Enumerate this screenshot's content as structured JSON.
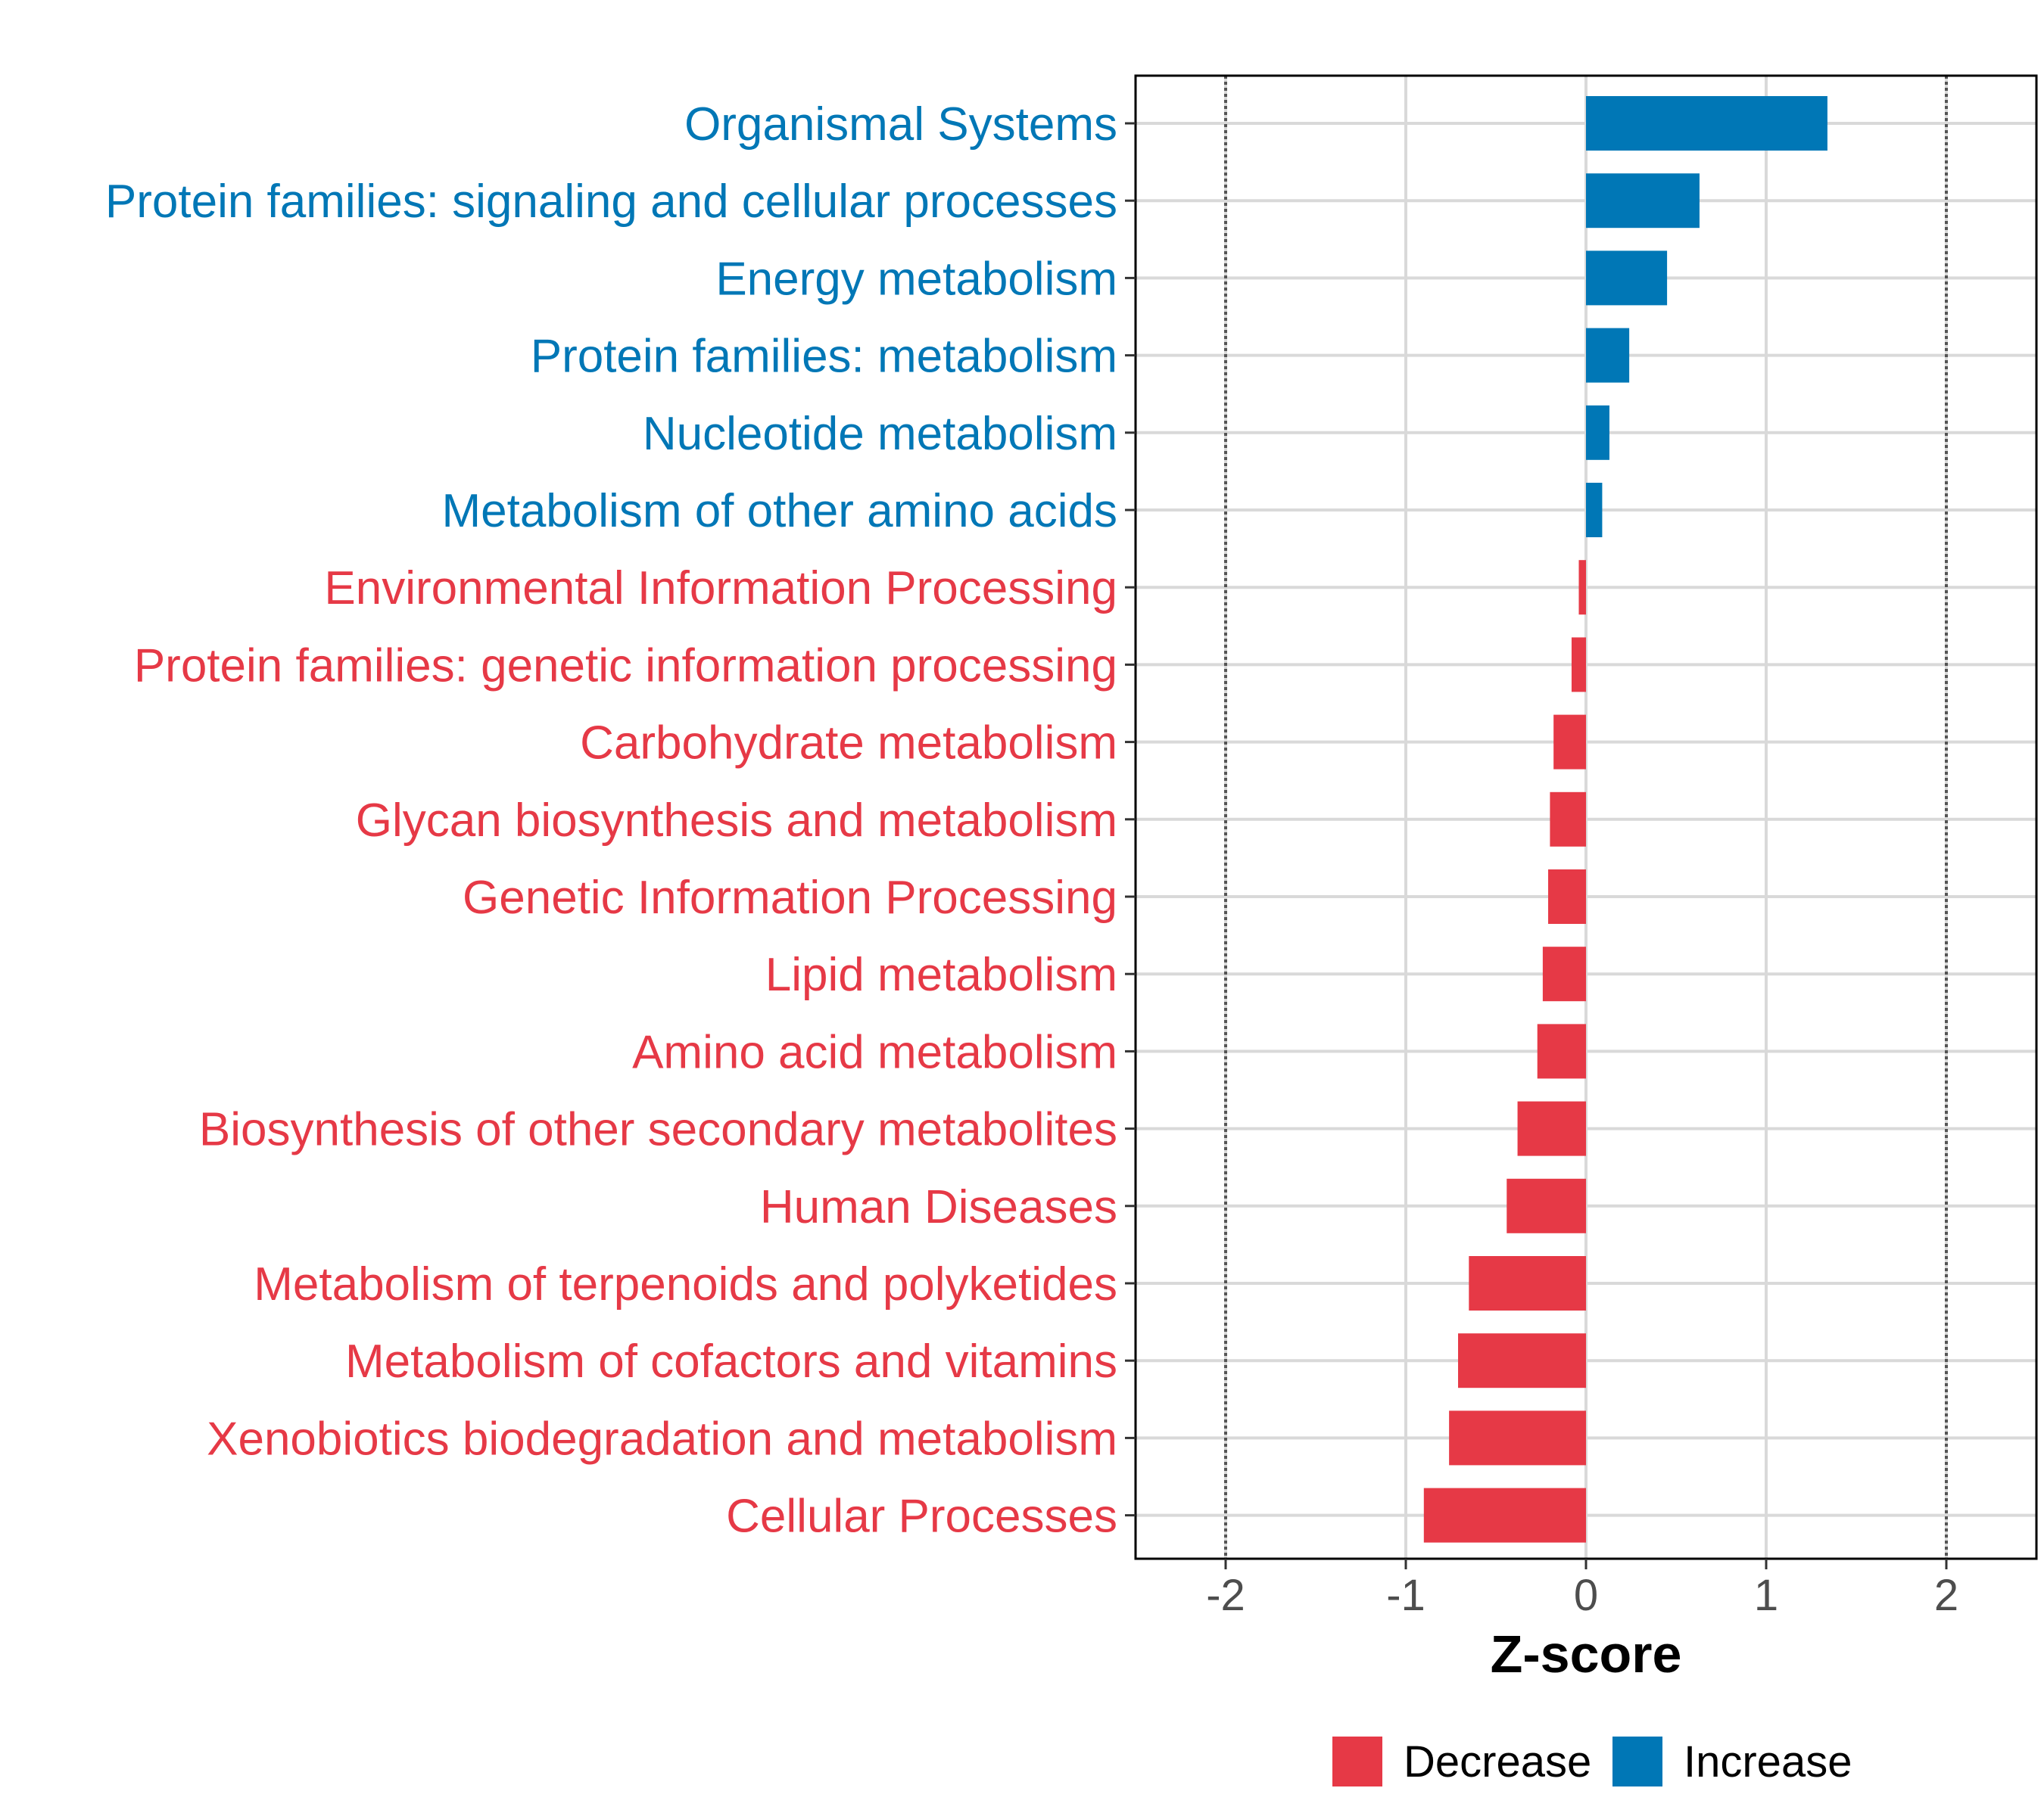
{
  "chart_data": {
    "type": "bar",
    "orientation": "horizontal",
    "xlabel": "Z-score",
    "xlim": [
      -2.5,
      2.5
    ],
    "xticks": [
      -2,
      -1,
      0,
      1,
      2
    ],
    "reference_lines": [
      -2,
      2
    ],
    "colors": {
      "Decrease": "#e63946",
      "Increase": "#0077b6"
    },
    "legend": {
      "position": "bottom",
      "entries": [
        "Decrease",
        "Increase"
      ]
    },
    "categories": [
      {
        "label": "Organismal Systems",
        "value": 1.34,
        "group": "Increase"
      },
      {
        "label": "Protein families: signaling and cellular processes",
        "value": 0.63,
        "group": "Increase"
      },
      {
        "label": "Energy metabolism",
        "value": 0.45,
        "group": "Increase"
      },
      {
        "label": "Protein families: metabolism",
        "value": 0.24,
        "group": "Increase"
      },
      {
        "label": "Nucleotide metabolism",
        "value": 0.13,
        "group": "Increase"
      },
      {
        "label": "Metabolism of other amino acids",
        "value": 0.09,
        "group": "Increase"
      },
      {
        "label": "Environmental Information Processing",
        "value": -0.04,
        "group": "Decrease"
      },
      {
        "label": "Protein families: genetic information processing",
        "value": -0.08,
        "group": "Decrease"
      },
      {
        "label": "Carbohydrate metabolism",
        "value": -0.18,
        "group": "Decrease"
      },
      {
        "label": "Glycan biosynthesis and metabolism",
        "value": -0.2,
        "group": "Decrease"
      },
      {
        "label": "Genetic Information Processing",
        "value": -0.21,
        "group": "Decrease"
      },
      {
        "label": "Lipid metabolism",
        "value": -0.24,
        "group": "Decrease"
      },
      {
        "label": "Amino acid metabolism",
        "value": -0.27,
        "group": "Decrease"
      },
      {
        "label": "Biosynthesis of other secondary metabolites",
        "value": -0.38,
        "group": "Decrease"
      },
      {
        "label": "Human Diseases",
        "value": -0.44,
        "group": "Decrease"
      },
      {
        "label": "Metabolism of terpenoids and polyketides",
        "value": -0.65,
        "group": "Decrease"
      },
      {
        "label": "Metabolism of cofactors and vitamins",
        "value": -0.71,
        "group": "Decrease"
      },
      {
        "label": "Xenobiotics biodegradation and metabolism",
        "value": -0.76,
        "group": "Decrease"
      },
      {
        "label": "Cellular Processes",
        "value": -0.9,
        "group": "Decrease"
      }
    ]
  }
}
